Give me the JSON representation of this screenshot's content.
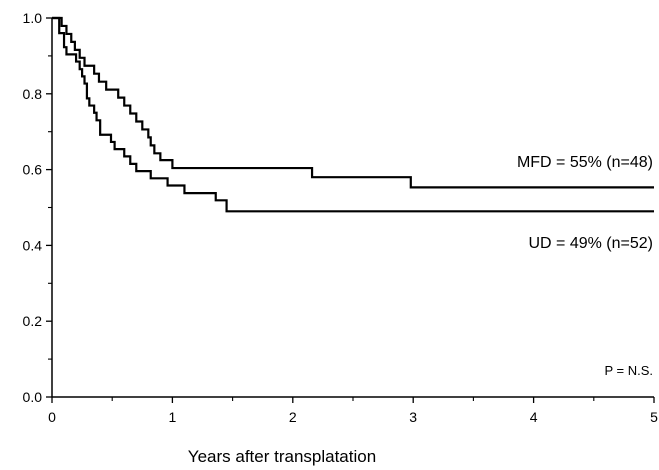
{
  "chart_data": {
    "type": "line",
    "xlabel": "Years after transplatation",
    "ylabel": "",
    "xlim": [
      0,
      5
    ],
    "ylim": [
      0,
      1
    ],
    "x_ticks": [
      "0",
      "1",
      "2",
      "3",
      "4",
      "5"
    ],
    "y_ticks": [
      "0.0",
      "0.2",
      "0.4",
      "0.6",
      "0.8",
      "1.0"
    ],
    "grid": false,
    "step": true,
    "series": [
      {
        "name": "MFD = 55% (n=48)",
        "color": "#000000",
        "points": [
          [
            0,
            1.0
          ],
          [
            0.08,
            1.0
          ],
          [
            0.08,
            0.979
          ],
          [
            0.12,
            0.979
          ],
          [
            0.12,
            0.958
          ],
          [
            0.16,
            0.958
          ],
          [
            0.16,
            0.937
          ],
          [
            0.19,
            0.937
          ],
          [
            0.19,
            0.916
          ],
          [
            0.23,
            0.916
          ],
          [
            0.23,
            0.895
          ],
          [
            0.27,
            0.895
          ],
          [
            0.27,
            0.874
          ],
          [
            0.35,
            0.874
          ],
          [
            0.35,
            0.853
          ],
          [
            0.39,
            0.853
          ],
          [
            0.39,
            0.832
          ],
          [
            0.45,
            0.832
          ],
          [
            0.45,
            0.811
          ],
          [
            0.55,
            0.811
          ],
          [
            0.55,
            0.79
          ],
          [
            0.6,
            0.79
          ],
          [
            0.6,
            0.769
          ],
          [
            0.65,
            0.769
          ],
          [
            0.65,
            0.748
          ],
          [
            0.7,
            0.748
          ],
          [
            0.7,
            0.727
          ],
          [
            0.75,
            0.727
          ],
          [
            0.75,
            0.706
          ],
          [
            0.8,
            0.706
          ],
          [
            0.8,
            0.685
          ],
          [
            0.82,
            0.685
          ],
          [
            0.82,
            0.664
          ],
          [
            0.85,
            0.664
          ],
          [
            0.85,
            0.643
          ],
          [
            0.9,
            0.643
          ],
          [
            0.9,
            0.625
          ],
          [
            1.0,
            0.625
          ],
          [
            1.0,
            0.604
          ],
          [
            2.16,
            0.604
          ],
          [
            2.16,
            0.58
          ],
          [
            2.98,
            0.58
          ],
          [
            2.98,
            0.553
          ],
          [
            5.0,
            0.553
          ]
        ]
      },
      {
        "name": "UD = 49% (n=52)",
        "color": "#000000",
        "points": [
          [
            0,
            1.0
          ],
          [
            0.06,
            1.0
          ],
          [
            0.06,
            0.96
          ],
          [
            0.1,
            0.96
          ],
          [
            0.1,
            0.923
          ],
          [
            0.12,
            0.923
          ],
          [
            0.12,
            0.904
          ],
          [
            0.2,
            0.904
          ],
          [
            0.2,
            0.885
          ],
          [
            0.23,
            0.885
          ],
          [
            0.23,
            0.865
          ],
          [
            0.25,
            0.865
          ],
          [
            0.25,
            0.846
          ],
          [
            0.27,
            0.846
          ],
          [
            0.27,
            0.827
          ],
          [
            0.29,
            0.827
          ],
          [
            0.29,
            0.788
          ],
          [
            0.31,
            0.788
          ],
          [
            0.31,
            0.769
          ],
          [
            0.35,
            0.769
          ],
          [
            0.35,
            0.75
          ],
          [
            0.37,
            0.75
          ],
          [
            0.37,
            0.73
          ],
          [
            0.4,
            0.73
          ],
          [
            0.4,
            0.692
          ],
          [
            0.49,
            0.692
          ],
          [
            0.49,
            0.673
          ],
          [
            0.52,
            0.673
          ],
          [
            0.52,
            0.654
          ],
          [
            0.6,
            0.654
          ],
          [
            0.6,
            0.635
          ],
          [
            0.65,
            0.635
          ],
          [
            0.65,
            0.615
          ],
          [
            0.7,
            0.615
          ],
          [
            0.7,
            0.596
          ],
          [
            0.82,
            0.596
          ],
          [
            0.82,
            0.577
          ],
          [
            0.96,
            0.577
          ],
          [
            0.96,
            0.558
          ],
          [
            1.1,
            0.558
          ],
          [
            1.1,
            0.538
          ],
          [
            1.36,
            0.538
          ],
          [
            1.36,
            0.519
          ],
          [
            1.45,
            0.519
          ],
          [
            1.45,
            0.49
          ],
          [
            5.0,
            0.49
          ]
        ]
      }
    ],
    "annotations": [
      "MFD = 55% (n=48)",
      "UD = 49% (n=52)",
      "P = N.S."
    ]
  }
}
